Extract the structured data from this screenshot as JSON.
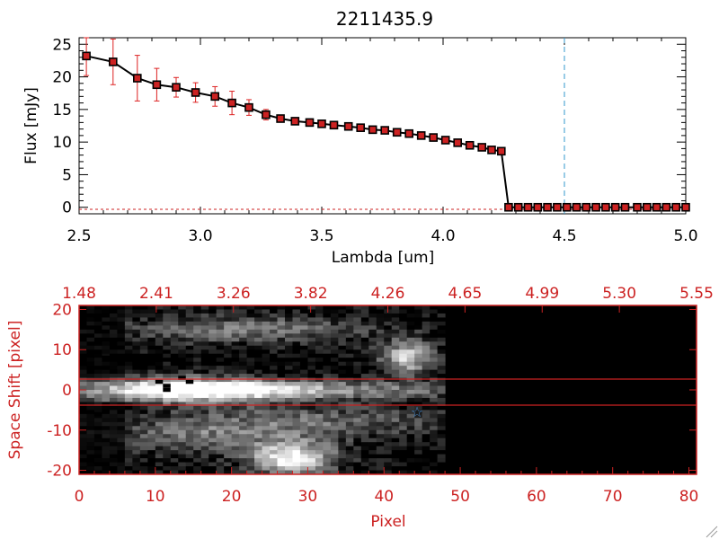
{
  "colors": {
    "axis_red": "#cc2222",
    "black": "#000000",
    "marker_red": "#cc2222",
    "errbar_red": "#dd2222",
    "dashed_blue": "#3399cc",
    "star_blue": "#4488cc"
  },
  "chart_data": [
    {
      "type": "line",
      "title": "2211435.9",
      "xlabel": "Lambda [um]",
      "ylabel": "Flux [mJy]",
      "xlim": [
        2.5,
        5.0
      ],
      "ylim": [
        -1,
        26
      ],
      "x_ticks": [
        "2.5",
        "3.0",
        "3.5",
        "4.0",
        "4.5",
        "5.0"
      ],
      "y_ticks": [
        "0",
        "5",
        "10",
        "15",
        "20",
        "25"
      ],
      "vline_x": 4.5,
      "series": [
        {
          "name": "flux",
          "x": [
            2.53,
            2.64,
            2.74,
            2.82,
            2.9,
            2.98,
            3.06,
            3.13,
            3.2,
            3.27,
            3.33,
            3.39,
            3.45,
            3.5,
            3.55,
            3.61,
            3.66,
            3.71,
            3.76,
            3.81,
            3.86,
            3.91,
            3.96,
            4.01,
            4.06,
            4.11,
            4.16,
            4.2,
            4.24,
            4.27,
            4.31,
            4.35,
            4.39,
            4.43,
            4.47,
            4.51,
            4.55,
            4.59,
            4.63,
            4.67,
            4.71,
            4.75,
            4.8,
            4.84,
            4.88,
            4.92,
            4.96,
            5.0
          ],
          "values": [
            23.2,
            22.3,
            19.8,
            18.8,
            18.4,
            17.6,
            17.0,
            16.0,
            15.3,
            14.2,
            13.6,
            13.2,
            13.0,
            12.8,
            12.6,
            12.4,
            12.2,
            11.9,
            11.8,
            11.5,
            11.3,
            11.0,
            10.7,
            10.3,
            9.9,
            9.5,
            9.2,
            8.8,
            8.6,
            0,
            0,
            0,
            0,
            0,
            0,
            0,
            0,
            0,
            0,
            0,
            0,
            0,
            0,
            0,
            0,
            0,
            0,
            0
          ],
          "errors": [
            3.0,
            3.5,
            3.5,
            2.5,
            1.5,
            1.5,
            1.5,
            1.8,
            1.2,
            0.8,
            0.4,
            0.3,
            0.3,
            0.3,
            0.3,
            0.3,
            0.3,
            0.3,
            0.3,
            0.3,
            0.3,
            0.3,
            0.3,
            0.3,
            0.3,
            0.3,
            0.3,
            0.3,
            0.3,
            0,
            0,
            0,
            0,
            0,
            0,
            0,
            0,
            0,
            0,
            0,
            0,
            0,
            0,
            0,
            0,
            0,
            0,
            0
          ]
        }
      ]
    },
    {
      "type": "heatmap",
      "xlabel": "Pixel",
      "ylabel": "Space Shift [pixel]",
      "xlim": [
        0,
        81
      ],
      "ylim": [
        -21,
        21
      ],
      "x_ticks": [
        "0",
        "10",
        "20",
        "30",
        "40",
        "50",
        "60",
        "70",
        "80"
      ],
      "y_ticks": [
        "-20",
        "-10",
        "0",
        "10",
        "20"
      ],
      "top_ticks": [
        "1.48",
        "2.41",
        "3.26",
        "3.82",
        "4.26",
        "4.65",
        "4.99",
        "5.30",
        "5.55"
      ],
      "data_extent_pixels": 48,
      "hlines": [
        3,
        -3
      ],
      "star_marker": {
        "x": 44.5,
        "y": -4
      }
    }
  ]
}
